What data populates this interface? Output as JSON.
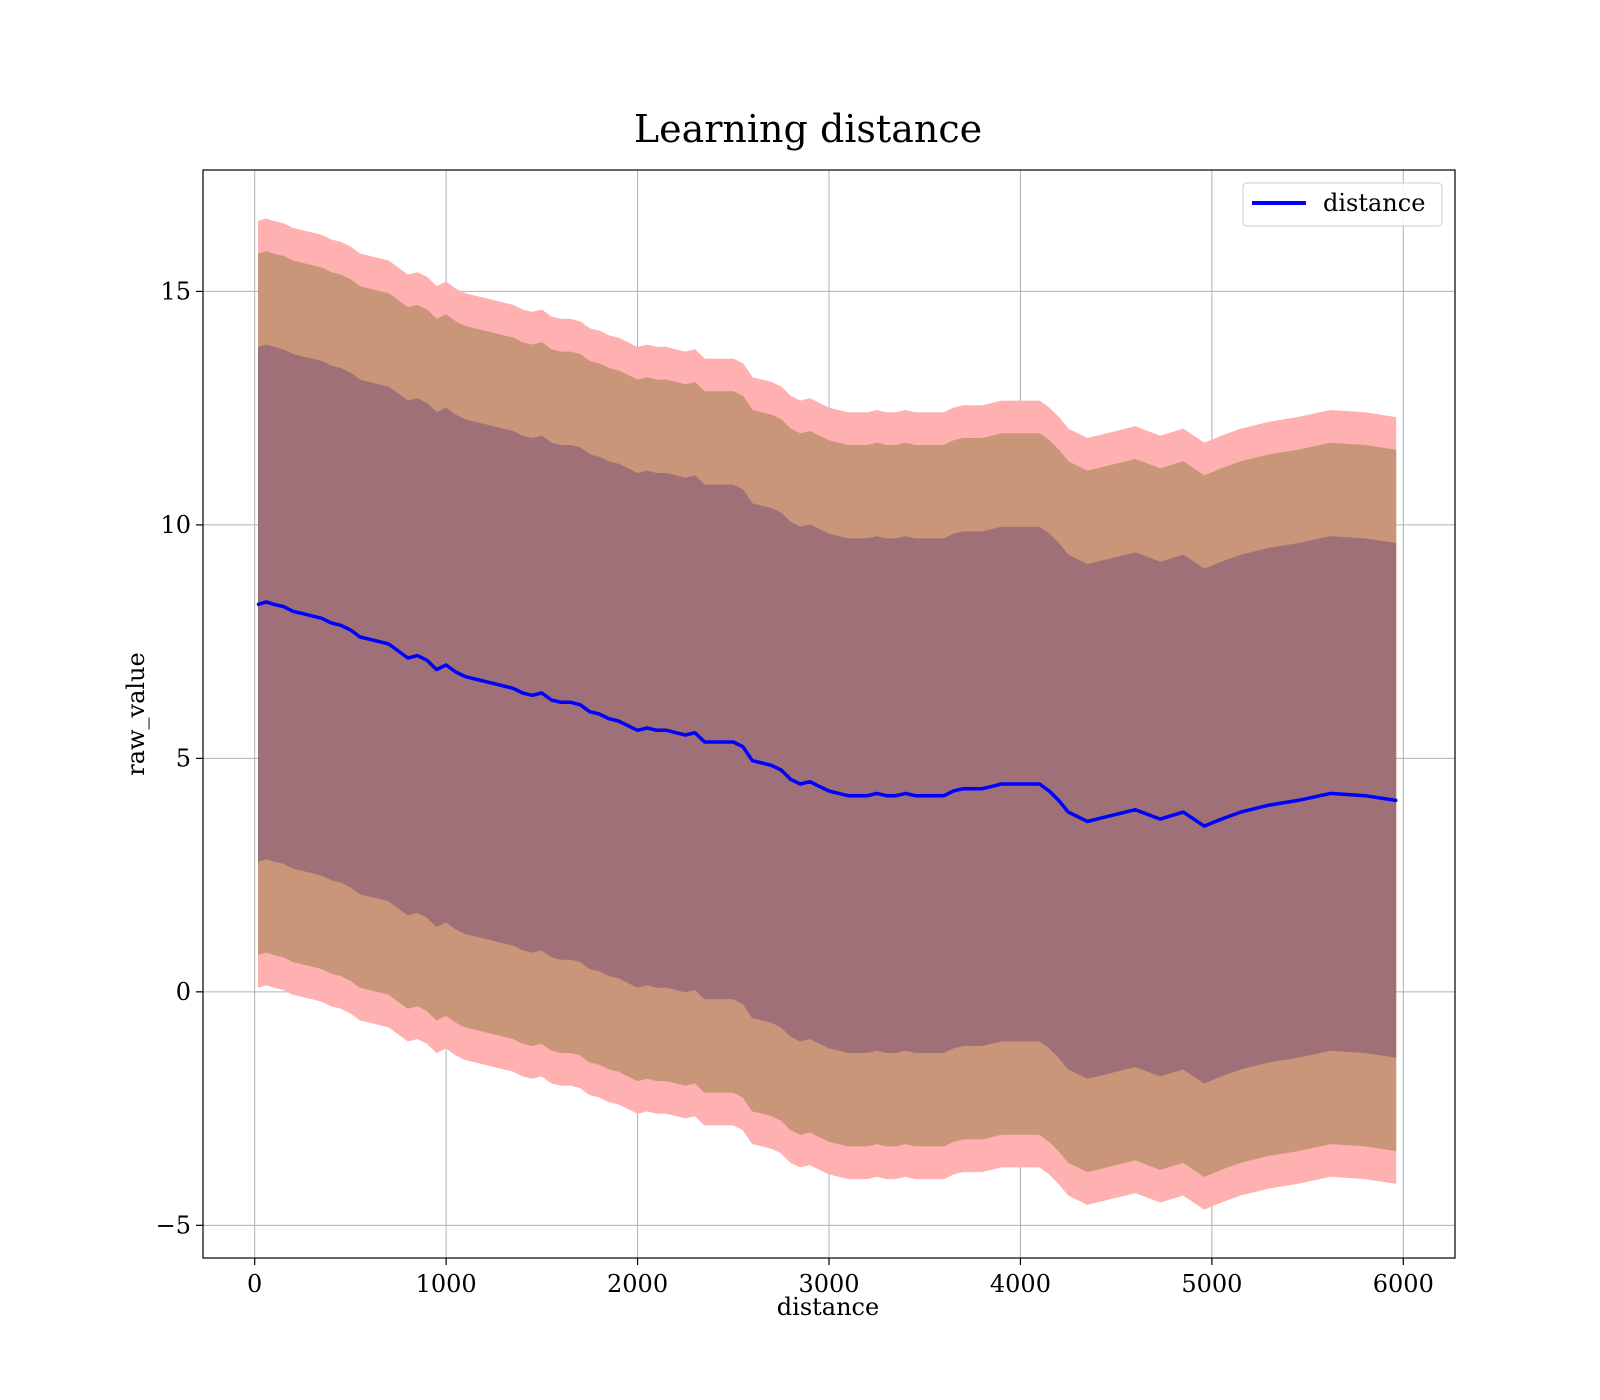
{
  "chart_data": {
    "type": "line",
    "title": "Learning distance",
    "xlabel": "distance",
    "ylabel": "raw_value",
    "xlim": [
      -270,
      6270
    ],
    "ylim": [
      -5.7,
      17.6
    ],
    "xticks": [
      0,
      1000,
      2000,
      3000,
      4000,
      5000,
      6000
    ],
    "xtick_labels": [
      "0",
      "1000",
      "2000",
      "3000",
      "4000",
      "5000",
      "6000"
    ],
    "yticks": [
      -5,
      0,
      5,
      10,
      15
    ],
    "ytick_labels": [
      "−5",
      "0",
      "5",
      "10",
      "15"
    ],
    "grid": true,
    "legend": {
      "position": "top-right",
      "entries": [
        "distance"
      ]
    },
    "colors": {
      "line": "#0000ff",
      "band_outer": "#ffb0b0",
      "band_middle": "#c99679",
      "band_inner": "#a07079"
    },
    "x": [
      20,
      60,
      100,
      150,
      200,
      250,
      300,
      350,
      400,
      450,
      500,
      550,
      600,
      650,
      700,
      750,
      800,
      850,
      900,
      950,
      1000,
      1050,
      1100,
      1150,
      1200,
      1250,
      1300,
      1350,
      1400,
      1450,
      1500,
      1550,
      1600,
      1650,
      1700,
      1750,
      1800,
      1850,
      1900,
      1950,
      2000,
      2050,
      2100,
      2150,
      2200,
      2250,
      2300,
      2350,
      2400,
      2450,
      2500,
      2550,
      2600,
      2650,
      2700,
      2750,
      2800,
      2850,
      2900,
      2950,
      3000,
      3050,
      3100,
      3150,
      3200,
      3250,
      3300,
      3350,
      3400,
      3450,
      3500,
      3550,
      3600,
      3650,
      3700,
      3750,
      3800,
      3850,
      3900,
      3950,
      4000,
      4050,
      4100,
      4150,
      4200,
      4250,
      4350,
      4450,
      4600,
      4730,
      4850,
      4960,
      5050,
      5150,
      5300,
      5450,
      5620,
      5800,
      5960
    ],
    "series": [
      {
        "name": "distance",
        "values": [
          8.3,
          8.35,
          8.3,
          8.25,
          8.15,
          8.1,
          8.05,
          8.0,
          7.9,
          7.85,
          7.75,
          7.6,
          7.55,
          7.5,
          7.45,
          7.3,
          7.15,
          7.2,
          7.1,
          6.9,
          7.0,
          6.85,
          6.75,
          6.7,
          6.65,
          6.6,
          6.55,
          6.5,
          6.4,
          6.35,
          6.4,
          6.25,
          6.2,
          6.2,
          6.15,
          6.0,
          5.95,
          5.85,
          5.8,
          5.7,
          5.6,
          5.65,
          5.6,
          5.6,
          5.55,
          5.5,
          5.55,
          5.35,
          5.35,
          5.35,
          5.35,
          5.25,
          4.95,
          4.9,
          4.85,
          4.75,
          4.55,
          4.45,
          4.5,
          4.4,
          4.3,
          4.25,
          4.2,
          4.2,
          4.2,
          4.25,
          4.2,
          4.2,
          4.25,
          4.2,
          4.2,
          4.2,
          4.2,
          4.3,
          4.35,
          4.35,
          4.35,
          4.4,
          4.45,
          4.45,
          4.45,
          4.45,
          4.45,
          4.3,
          4.1,
          3.85,
          3.65,
          3.75,
          3.9,
          3.7,
          3.85,
          3.55,
          3.7,
          3.85,
          4.0,
          4.1,
          4.25,
          4.2,
          4.1
        ]
      }
    ],
    "bands": [
      {
        "layer": "outer",
        "offset": 8.2
      },
      {
        "layer": "middle",
        "offset": 7.5
      },
      {
        "layer": "inner",
        "offset": 5.5
      }
    ]
  }
}
